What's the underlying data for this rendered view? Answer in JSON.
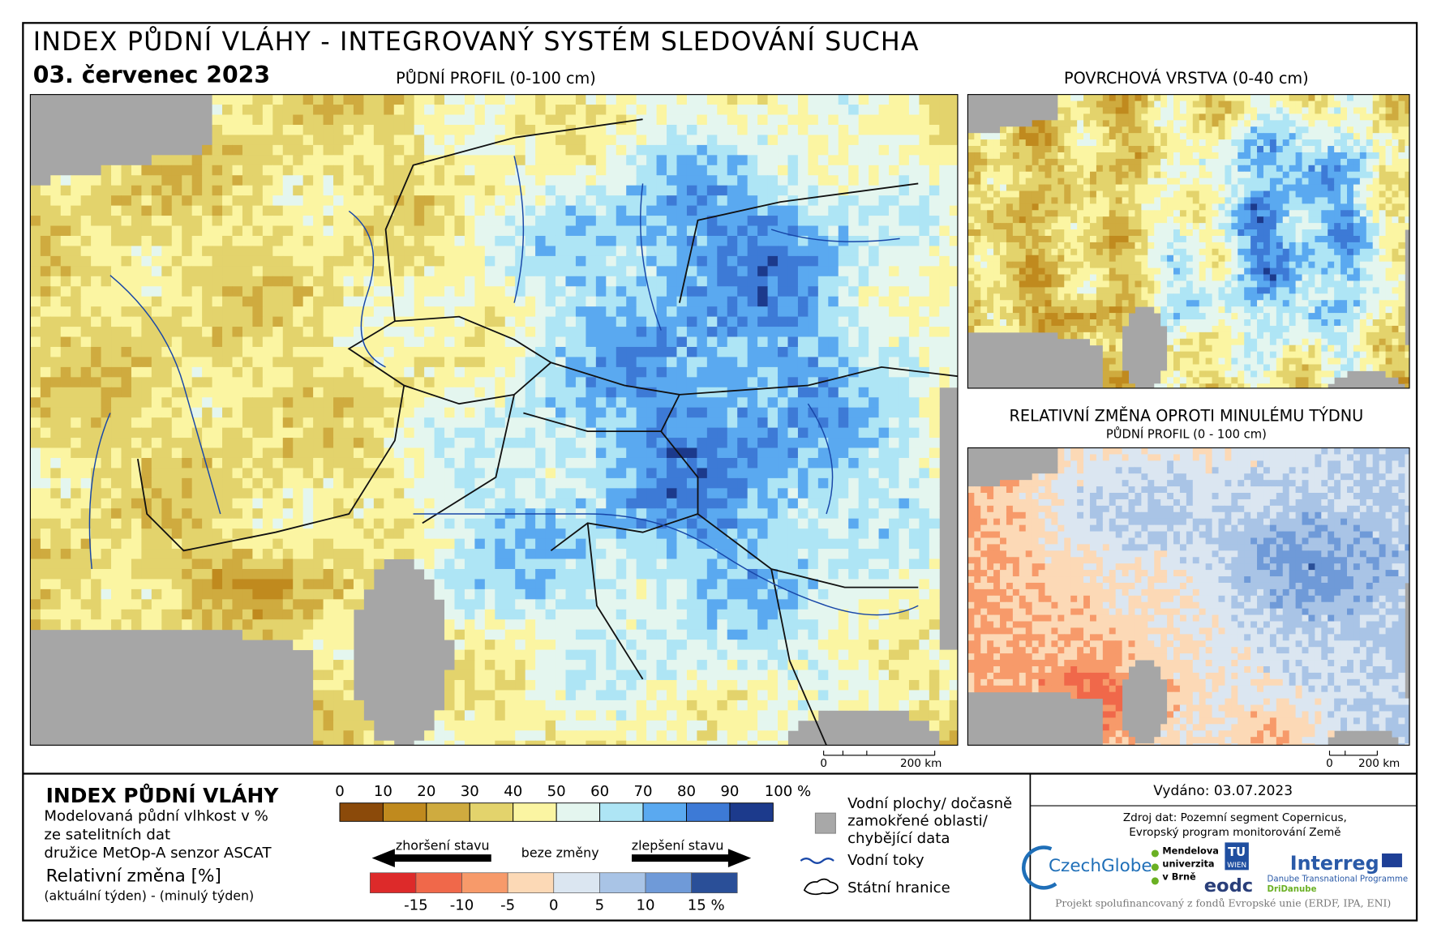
{
  "header": {
    "title": "INDEX PŮDNÍ VLÁHY - INTEGROVANÝ SYSTÉM SLEDOVÁNÍ SUCHA",
    "date": "03. červenec 2023"
  },
  "maps": {
    "main": {
      "title": "PŮDNÍ PROFIL (0-100 cm)",
      "scale_bar": [
        "0",
        "200 km"
      ]
    },
    "surface": {
      "title": "POVRCHOVÁ VRSTVA (0-40 cm)"
    },
    "change": {
      "title": "RELATIVNÍ ZMĚNA OPROTI MINULÉMU TÝDNU",
      "subtitle": "PŮDNÍ PROFIL (0 - 100 cm)",
      "scale_bar": [
        "0",
        "200 km"
      ]
    }
  },
  "legend": {
    "title": "INDEX PŮDNÍ VLÁHY",
    "description": [
      "Modelovaná půdní vlhkost v %",
      "ze satelitních dat",
      "družice MetOp-A senzor ASCAT"
    ],
    "change_title": "Relativní změna [%]",
    "change_description": "(aktuální týden) - (minulý týden)",
    "moisture_ticks": [
      "0",
      "10",
      "20",
      "30",
      "40",
      "50",
      "60",
      "70",
      "80",
      "90",
      "100 %"
    ],
    "moisture_colors": [
      "#8b4a0a",
      "#c08a1e",
      "#cfab3f",
      "#e3d36c",
      "#fbf5a2",
      "#e4f6ef",
      "#aee5f5",
      "#5aa9f0",
      "#3d7ad6",
      "#1c3a8c"
    ],
    "worse": "zhoršení stavu",
    "same": "beze změny",
    "better": "zlepšení stavu",
    "change_ticks": [
      "-15",
      "-10",
      "-5",
      "0",
      "5",
      "10",
      "15 %"
    ],
    "change_colors": [
      "#dd2a2a",
      "#f0684a",
      "#f79a6a",
      "#fcd9b6",
      "#dbe6f1",
      "#a9c4e6",
      "#6f9ad8",
      "#2a4f98"
    ],
    "water": [
      "Vodní plochy/ dočasně",
      "zamokřené oblasti/",
      "chybějící data"
    ],
    "rivers": "Vodní toky",
    "borders": "Státní hranice"
  },
  "footer": {
    "issued": "Vydáno: 03.07.2023",
    "source": [
      "Zdroj dat: Pozemní segment Copernicus,",
      "Evropský program monitorování Země"
    ],
    "logos": {
      "czechglobe": "CzechGlobe",
      "mendel": [
        "Mendelova",
        "univerzita",
        "v Brně"
      ],
      "tu": [
        "TU",
        "WIEN"
      ],
      "eodc": "eodc",
      "interreg": "Interreg",
      "programme": "Danube Transnational Programme",
      "dridanube": "DriDanube"
    },
    "funding": "Projekt spolufinancovaný z fondů Evropské unie (ERDF, IPA, ENI)"
  }
}
